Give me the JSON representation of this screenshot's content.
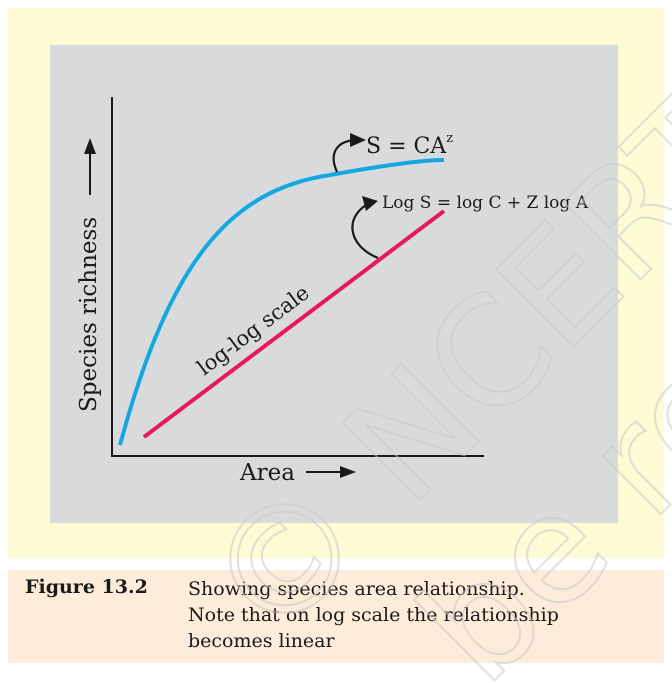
{
  "chart_data": {
    "type": "line",
    "xlabel": "Area",
    "ylabel": "Species richness",
    "series": [
      {
        "name": "S = CA^z",
        "label_main": "S = CA",
        "label_sup": "z",
        "color": "#15a8e0",
        "shape": "saturating-curve"
      },
      {
        "name": "Log S = log C + Z log A",
        "color": "#e8195a",
        "shape": "straight-line"
      }
    ],
    "annotations": {
      "loglog": "log-log scale",
      "power_main": "S = CA",
      "power_sup": "z",
      "log_eq": "Log S = log C + Z log A"
    }
  },
  "caption": {
    "label": "Figure 13.2",
    "lines": [
      "Showing species area relationship.",
      "Note that on log scale the relationship",
      "becomes linear"
    ]
  },
  "watermark": {
    "main": "© NCERT",
    "second": "be re"
  }
}
